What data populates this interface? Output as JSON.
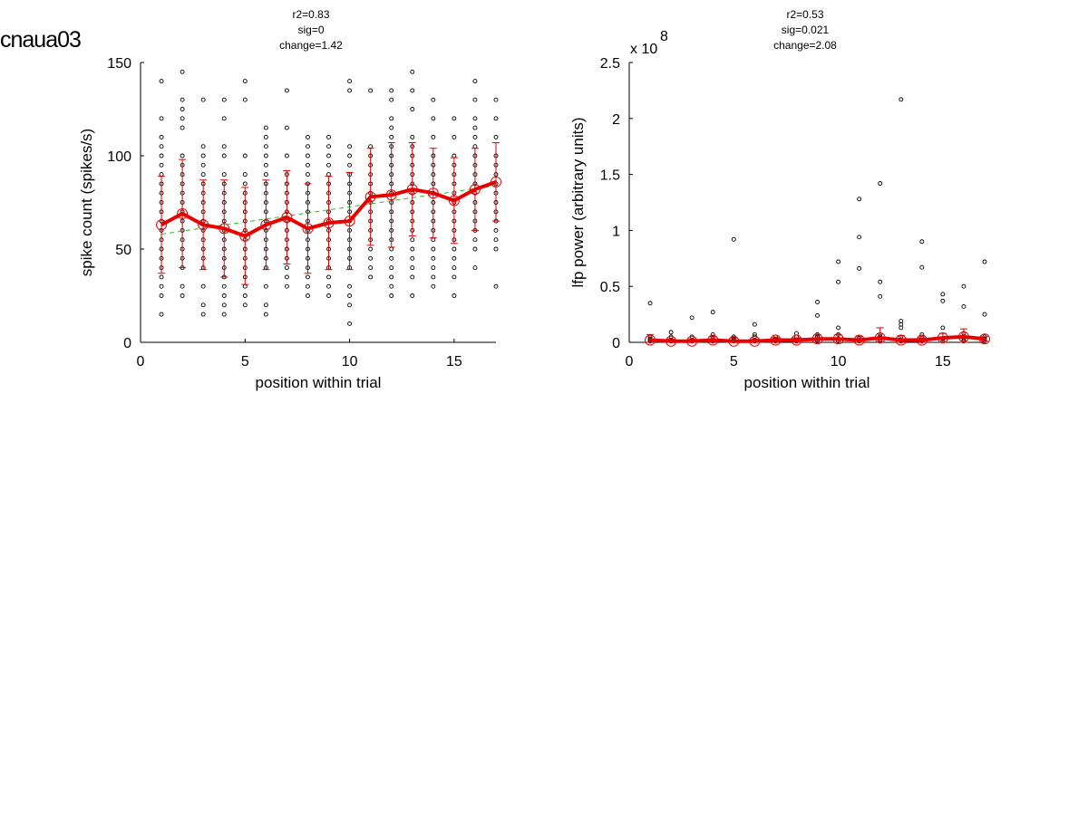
{
  "page_title": "cnaua03",
  "colors": {
    "mean_line": "#e60000",
    "error_bar": "#d40000",
    "fit_line": "#2fb52f",
    "points": "#000000"
  },
  "chart_data": [
    {
      "type": "scatter",
      "stats": [
        "r2=0.83",
        "sig=0",
        "change=1.42"
      ],
      "xlabel": "position within trial",
      "ylabel": "spike count (spikes/s)",
      "xlim": [
        0,
        17
      ],
      "ylim": [
        0,
        150
      ],
      "xticks": [
        0,
        5,
        10,
        15
      ],
      "yticks": [
        0,
        50,
        100,
        150
      ],
      "multiplier": "",
      "grid": false,
      "points": [
        {
          "x": 1,
          "y": [
            15,
            25,
            30,
            35,
            40,
            45,
            50,
            55,
            60,
            65,
            70,
            75,
            80,
            85,
            90,
            95,
            100,
            105,
            110,
            120,
            140
          ]
        },
        {
          "x": 2,
          "y": [
            25,
            30,
            40,
            45,
            50,
            55,
            60,
            65,
            70,
            75,
            80,
            85,
            90,
            95,
            100,
            115,
            120,
            125,
            130,
            145
          ]
        },
        {
          "x": 3,
          "y": [
            15,
            20,
            30,
            40,
            45,
            50,
            55,
            60,
            65,
            70,
            75,
            80,
            85,
            90,
            95,
            100,
            105,
            130
          ]
        },
        {
          "x": 4,
          "y": [
            15,
            20,
            25,
            30,
            35,
            40,
            45,
            50,
            55,
            60,
            65,
            70,
            75,
            80,
            85,
            90,
            100,
            105,
            120,
            130
          ]
        },
        {
          "x": 5,
          "y": [
            20,
            25,
            30,
            35,
            40,
            45,
            50,
            55,
            60,
            65,
            70,
            75,
            80,
            85,
            90,
            100,
            130,
            140
          ]
        },
        {
          "x": 6,
          "y": [
            15,
            20,
            30,
            40,
            45,
            50,
            55,
            60,
            65,
            70,
            75,
            80,
            85,
            90,
            95,
            100,
            105,
            110,
            115
          ]
        },
        {
          "x": 7,
          "y": [
            30,
            35,
            40,
            45,
            50,
            55,
            60,
            65,
            70,
            75,
            80,
            85,
            90,
            100,
            115,
            135
          ]
        },
        {
          "x": 8,
          "y": [
            25,
            30,
            35,
            40,
            45,
            50,
            55,
            60,
            65,
            70,
            75,
            80,
            85,
            90,
            95,
            100,
            105,
            110
          ]
        },
        {
          "x": 9,
          "y": [
            25,
            30,
            35,
            40,
            45,
            50,
            55,
            60,
            65,
            70,
            75,
            80,
            85,
            90,
            95,
            100,
            105,
            110
          ]
        },
        {
          "x": 10,
          "y": [
            10,
            20,
            25,
            30,
            40,
            45,
            50,
            55,
            60,
            65,
            70,
            75,
            80,
            85,
            90,
            95,
            100,
            105,
            135,
            140
          ]
        },
        {
          "x": 11,
          "y": [
            35,
            40,
            45,
            50,
            55,
            60,
            65,
            70,
            75,
            80,
            85,
            90,
            95,
            100,
            105,
            135
          ]
        },
        {
          "x": 12,
          "y": [
            25,
            30,
            35,
            40,
            45,
            50,
            55,
            60,
            65,
            70,
            75,
            80,
            85,
            90,
            95,
            100,
            105,
            110,
            115,
            120,
            130,
            135
          ]
        },
        {
          "x": 13,
          "y": [
            25,
            35,
            40,
            45,
            50,
            55,
            60,
            65,
            70,
            75,
            80,
            85,
            90,
            95,
            100,
            105,
            110,
            125,
            135,
            145
          ]
        },
        {
          "x": 14,
          "y": [
            30,
            35,
            40,
            45,
            50,
            55,
            60,
            65,
            70,
            75,
            80,
            85,
            90,
            95,
            100,
            110,
            120,
            130
          ]
        },
        {
          "x": 15,
          "y": [
            25,
            35,
            40,
            45,
            50,
            55,
            60,
            65,
            70,
            75,
            80,
            85,
            90,
            95,
            100,
            110,
            120
          ]
        },
        {
          "x": 16,
          "y": [
            40,
            50,
            55,
            60,
            65,
            70,
            75,
            80,
            85,
            90,
            95,
            100,
            105,
            110,
            115,
            120,
            130,
            140
          ]
        },
        {
          "x": 17,
          "y": [
            30,
            50,
            55,
            60,
            65,
            70,
            75,
            80,
            85,
            90,
            95,
            100,
            110,
            120,
            130
          ]
        }
      ],
      "mean": {
        "x": [
          1,
          2,
          3,
          4,
          5,
          6,
          7,
          8,
          9,
          10,
          11,
          12,
          13,
          14,
          15,
          16,
          17
        ],
        "y": [
          63,
          69,
          63,
          61,
          57,
          63,
          67,
          61,
          64,
          65,
          78,
          79,
          82,
          80,
          76,
          82,
          86
        ],
        "err": [
          26,
          29,
          24,
          26,
          26,
          24,
          25,
          24,
          25,
          26,
          26,
          28,
          25,
          24,
          23,
          22,
          21
        ]
      },
      "fit": {
        "x": [
          1,
          17
        ],
        "y": [
          58,
          84
        ]
      }
    },
    {
      "type": "scatter",
      "stats": [
        "r2=0.53",
        "sig=0.021",
        "change=2.08"
      ],
      "xlabel": "position within trial",
      "ylabel": "lfp power (arbitrary units)",
      "xlim": [
        0,
        17
      ],
      "ylim": [
        0,
        2.5
      ],
      "xticks": [
        0,
        5,
        10,
        15
      ],
      "yticks": [
        0,
        0.5,
        1,
        1.5,
        2,
        2.5
      ],
      "multiplier": "x 10",
      "multiplier_exponent": "8",
      "grid": false,
      "points": [
        {
          "x": 1,
          "y": [
            0.01,
            0.02,
            0.03,
            0.05,
            0.35
          ]
        },
        {
          "x": 2,
          "y": [
            0.01,
            0.02,
            0.05,
            0.09
          ]
        },
        {
          "x": 3,
          "y": [
            0.01,
            0.02,
            0.05,
            0.22
          ]
        },
        {
          "x": 4,
          "y": [
            0.01,
            0.02,
            0.04,
            0.07,
            0.27
          ]
        },
        {
          "x": 5,
          "y": [
            0.01,
            0.02,
            0.03,
            0.05,
            0.92
          ]
        },
        {
          "x": 6,
          "y": [
            0.01,
            0.02,
            0.05,
            0.07,
            0.16
          ]
        },
        {
          "x": 7,
          "y": [
            0.01,
            0.02,
            0.03,
            0.05
          ]
        },
        {
          "x": 8,
          "y": [
            0.01,
            0.02,
            0.05,
            0.08
          ]
        },
        {
          "x": 9,
          "y": [
            0.01,
            0.02,
            0.05,
            0.07,
            0.24,
            0.36
          ]
        },
        {
          "x": 10,
          "y": [
            0.01,
            0.03,
            0.07,
            0.13,
            0.54,
            0.72
          ]
        },
        {
          "x": 11,
          "y": [
            0.01,
            0.02,
            0.04,
            0.66,
            0.94,
            1.28
          ]
        },
        {
          "x": 12,
          "y": [
            0.01,
            0.02,
            0.05,
            0.07,
            0.41,
            0.54,
            1.42
          ]
        },
        {
          "x": 13,
          "y": [
            0.01,
            0.02,
            0.05,
            0.13,
            0.16,
            0.19,
            2.17
          ]
        },
        {
          "x": 14,
          "y": [
            0.01,
            0.02,
            0.05,
            0.07,
            0.67,
            0.9
          ]
        },
        {
          "x": 15,
          "y": [
            0.01,
            0.03,
            0.13,
            0.37,
            0.43
          ]
        },
        {
          "x": 16,
          "y": [
            0.01,
            0.02,
            0.05,
            0.08,
            0.32,
            0.5
          ]
        },
        {
          "x": 17,
          "y": [
            0.01,
            0.03,
            0.05,
            0.25,
            0.72
          ]
        }
      ],
      "mean": {
        "x": [
          1,
          2,
          3,
          4,
          5,
          6,
          7,
          8,
          9,
          10,
          11,
          12,
          13,
          14,
          15,
          16,
          17
        ],
        "y": [
          0.02,
          0.01,
          0.01,
          0.02,
          0.01,
          0.01,
          0.02,
          0.02,
          0.03,
          0.03,
          0.02,
          0.04,
          0.02,
          0.02,
          0.04,
          0.05,
          0.03
        ],
        "err": [
          0.05,
          0.02,
          0.02,
          0.03,
          0.03,
          0.02,
          0.02,
          0.02,
          0.04,
          0.04,
          0.03,
          0.09,
          0.04,
          0.02,
          0.04,
          0.07,
          0.02
        ]
      },
      "fit": {
        "x": [
          1,
          17
        ],
        "y": [
          0.01,
          0.04
        ]
      }
    }
  ]
}
